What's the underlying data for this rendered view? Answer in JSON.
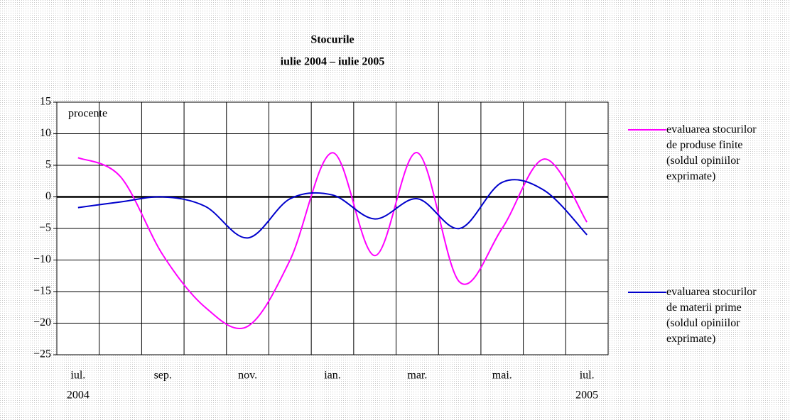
{
  "chart_data": {
    "type": "line",
    "title": "Stocurile",
    "subtitle": "iulie 2004 – iulie 2005",
    "y_label": "procente",
    "categories": [
      "iul.",
      null,
      "sep.",
      null,
      "nov.",
      null,
      "ian.",
      null,
      "mar.",
      null,
      "mai.",
      null,
      "iul."
    ],
    "sublabels": [
      "2004",
      null,
      null,
      null,
      null,
      null,
      null,
      null,
      null,
      null,
      null,
      null,
      "2005"
    ],
    "series": [
      {
        "name": "evaluarea stocurilor de produse finite (soldul opiniilor exprimate)",
        "color": "#ff00ff",
        "values": [
          6.2,
          3.2,
          -9.2,
          -17.5,
          -20.5,
          -10,
          7,
          -9.3,
          7,
          -13.5,
          -5,
          6,
          -4
        ]
      },
      {
        "name": "evaluarea stocurilor de materii prime (soldul opiniilor exprimate)",
        "color": "#0000cc",
        "values": [
          -1.7,
          -0.8,
          0,
          -1.5,
          -6.5,
          -0.3,
          0.3,
          -3.5,
          -0.3,
          -5,
          2.3,
          1,
          -6
        ]
      }
    ],
    "ylim": [
      -25,
      15
    ],
    "yticks": [
      15,
      10,
      5,
      0,
      {
        "value": -5,
        "label": "−5"
      },
      {
        "value": -10,
        "label": "−10"
      },
      {
        "value": -15,
        "label": "−15"
      },
      {
        "value": -20,
        "label": "−20"
      },
      {
        "value": -25,
        "label": "−25"
      }
    ],
    "grid": true
  }
}
